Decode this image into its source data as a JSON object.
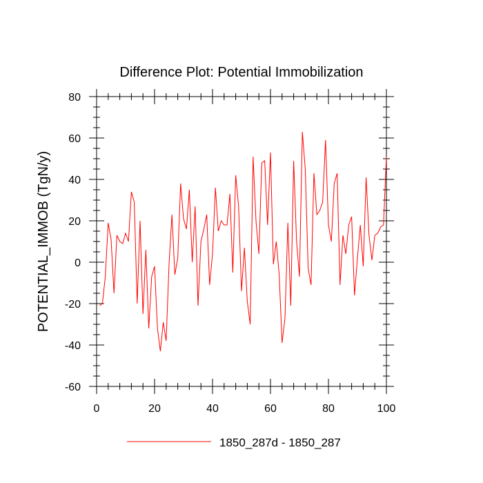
{
  "chart_data": {
    "type": "line",
    "title": "Difference Plot: Potential Immobilization",
    "xlabel": "",
    "ylabel": "POTENTIAL_IMMOB  (TgN/y)",
    "xlim": [
      0,
      100
    ],
    "ylim": [
      -60,
      80
    ],
    "x_ticks": [
      0,
      20,
      40,
      60,
      80,
      100
    ],
    "y_ticks": [
      -60,
      -40,
      -20,
      0,
      20,
      40,
      60,
      80
    ],
    "grid": false,
    "legend_position": "bottom-center",
    "series": [
      {
        "name": "1850_287d - 1850_287",
        "color": "#ff0000",
        "x": [
          1,
          2,
          3,
          4,
          5,
          6,
          7,
          8,
          9,
          10,
          11,
          12,
          13,
          14,
          15,
          16,
          17,
          18,
          19,
          20,
          21,
          22,
          23,
          24,
          25,
          26,
          27,
          28,
          29,
          30,
          31,
          32,
          33,
          34,
          35,
          36,
          37,
          38,
          39,
          40,
          41,
          42,
          43,
          44,
          45,
          46,
          47,
          48,
          49,
          50,
          51,
          52,
          53,
          54,
          55,
          56,
          57,
          58,
          59,
          60,
          61,
          62,
          63,
          64,
          65,
          66,
          67,
          68,
          69,
          70,
          71,
          72,
          73,
          74,
          75,
          76,
          77,
          78,
          79,
          80,
          81,
          82,
          83,
          84,
          85,
          86,
          87,
          88,
          89,
          90,
          91,
          92,
          93,
          94,
          95,
          96,
          97,
          98,
          99,
          100
        ],
        "values": [
          -21,
          -20,
          -7,
          19,
          11,
          -15,
          13,
          10,
          9,
          14,
          10,
          34,
          29,
          -20,
          20,
          -25,
          6,
          -32,
          -7,
          -2,
          -32,
          -43,
          -29,
          -38,
          -1,
          23,
          -6,
          2,
          38,
          21,
          16,
          35,
          0,
          27,
          -21,
          10,
          16,
          23,
          -11,
          4,
          36,
          15,
          20,
          18,
          18,
          33,
          -5,
          42,
          27,
          -14,
          7,
          -19,
          -30,
          51,
          20,
          4,
          48,
          49,
          18,
          53,
          -1,
          10,
          -6,
          -39,
          -27,
          19,
          -21,
          49,
          10,
          -7,
          63,
          45,
          -3,
          -11,
          43,
          23,
          25,
          29,
          59,
          18,
          10,
          38,
          43,
          -11,
          13,
          4,
          18,
          22,
          -16,
          2,
          18,
          -2,
          41,
          13,
          1,
          13,
          14,
          17,
          18,
          51
        ]
      }
    ]
  }
}
